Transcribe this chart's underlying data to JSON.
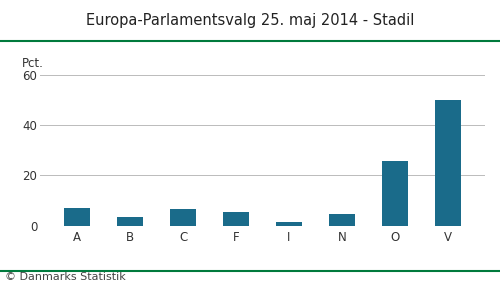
{
  "title": "Europa-Parlamentsvalg 25. maj 2014 - Stadil",
  "categories": [
    "A",
    "B",
    "C",
    "F",
    "I",
    "N",
    "O",
    "V"
  ],
  "values": [
    7.0,
    3.5,
    6.5,
    5.5,
    1.5,
    4.5,
    25.5,
    50.0
  ],
  "bar_color": "#1a6b8a",
  "ylabel": "Pct.",
  "ylim": [
    0,
    65
  ],
  "yticks": [
    0,
    20,
    40,
    60
  ],
  "background_color": "#ffffff",
  "footer": "© Danmarks Statistik",
  "title_color": "#222222",
  "footer_color": "#444444",
  "top_line_color": "#007a3d",
  "bottom_line_color": "#007a3d",
  "grid_color": "#bbbbbb",
  "title_fontsize": 10.5,
  "axis_fontsize": 8.5,
  "footer_fontsize": 8
}
